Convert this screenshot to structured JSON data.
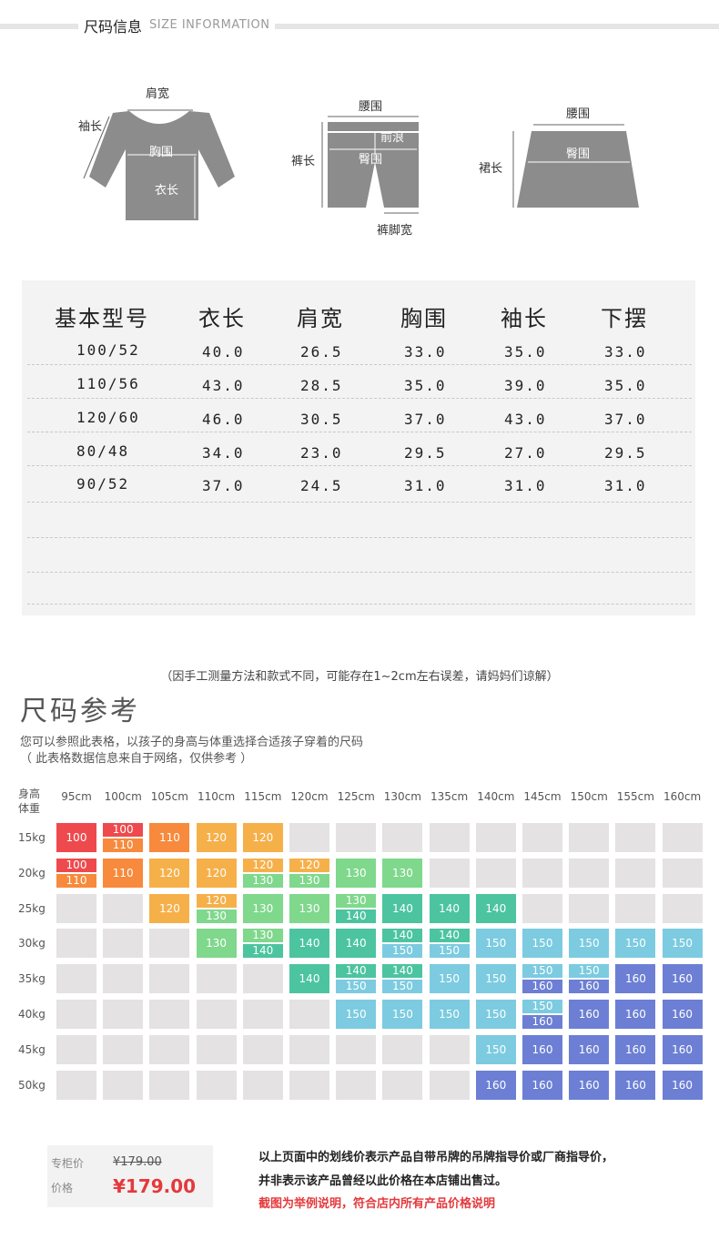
{
  "header": {
    "title": "尺码信息",
    "subtitle": "SIZE INFORMATION"
  },
  "diagrams": {
    "top": {
      "shoulder": "肩宽",
      "sleeve": "袖长",
      "chest": "胸围",
      "length": "衣长"
    },
    "pants": {
      "waist": "腰围",
      "rise": "前浪",
      "hip": "臀围",
      "length": "裤长",
      "leg": "裤脚宽"
    },
    "skirt": {
      "waist": "腰围",
      "hip": "臀围",
      "length": "裙长"
    }
  },
  "size_table": {
    "headers": [
      "基本型号",
      "衣长",
      "肩宽",
      "胸围",
      "袖长",
      "下摆"
    ],
    "rows": [
      [
        "100/52",
        "40.0",
        "26.5",
        "33.0",
        "35.0",
        "33.0"
      ],
      [
        "110/56",
        "43.0",
        "28.5",
        "35.0",
        "39.0",
        "35.0"
      ],
      [
        "120/60",
        "46.0",
        "30.5",
        "37.0",
        "43.0",
        "37.0"
      ],
      [
        "80/48",
        "34.0",
        "23.0",
        "29.5",
        "27.0",
        "29.5"
      ],
      [
        "90/52",
        "37.0",
        "24.5",
        "31.0",
        "31.0",
        "31.0"
      ]
    ]
  },
  "note": "（因手工测量方法和款式不同，可能存在1~2cm左右误差，请妈妈们谅解）",
  "reference": {
    "title": "尺码参考",
    "subtitle1": "您可以参照此表格，以孩子的身高与体重选择合适孩子穿着的尺码",
    "subtitle2": "（ 此表格数据信息来自于网络，仅供参考 ）",
    "corner_top": "身高",
    "corner_bottom": "体重",
    "heights": [
      "95cm",
      "100cm",
      "105cm",
      "110cm",
      "115cm",
      "120cm",
      "125cm",
      "130cm",
      "135cm",
      "140cm",
      "145cm",
      "150cm",
      "155cm",
      "160cm"
    ],
    "weights": [
      "15kg",
      "20kg",
      "25kg",
      "30kg",
      "35kg",
      "40kg",
      "45kg",
      "50kg"
    ],
    "grid": [
      [
        [
          "100"
        ],
        [
          "100",
          "110"
        ],
        [
          "110"
        ],
        [
          "120"
        ],
        [
          "120"
        ],
        [],
        [],
        [],
        [],
        [],
        [],
        [],
        [],
        []
      ],
      [
        [
          "100",
          "110"
        ],
        [
          "110"
        ],
        [
          "120"
        ],
        [
          "120"
        ],
        [
          "120",
          "130"
        ],
        [
          "120",
          "130"
        ],
        [
          "130"
        ],
        [
          "130"
        ],
        [],
        [],
        [],
        [],
        [],
        []
      ],
      [
        [],
        [],
        [
          "120"
        ],
        [
          "120",
          "130"
        ],
        [
          "130"
        ],
        [
          "130"
        ],
        [
          "130",
          "140"
        ],
        [
          "140"
        ],
        [
          "140"
        ],
        [
          "140"
        ],
        [],
        [],
        [],
        []
      ],
      [
        [],
        [],
        [],
        [
          "130"
        ],
        [
          "130",
          "140"
        ],
        [
          "140"
        ],
        [
          "140"
        ],
        [
          "140",
          "150"
        ],
        [
          "140",
          "150"
        ],
        [
          "150"
        ],
        [
          "150"
        ],
        [
          "150"
        ],
        [
          "150"
        ],
        [
          "150"
        ]
      ],
      [
        [],
        [],
        [],
        [],
        [],
        [
          "140"
        ],
        [
          "140",
          "150"
        ],
        [
          "140",
          "150"
        ],
        [
          "150"
        ],
        [
          "150"
        ],
        [
          "150",
          "160"
        ],
        [
          "150",
          "160"
        ],
        [
          "160"
        ],
        [
          "160"
        ]
      ],
      [
        [],
        [],
        [],
        [],
        [],
        [],
        [
          "150"
        ],
        [
          "150"
        ],
        [
          "150"
        ],
        [
          "150"
        ],
        [
          "150",
          "160"
        ],
        [
          "160"
        ],
        [
          "160"
        ],
        [
          "160"
        ]
      ],
      [
        [],
        [],
        [],
        [],
        [],
        [],
        [],
        [],
        [],
        [
          "150"
        ],
        [
          "160"
        ],
        [
          "160"
        ],
        [
          "160"
        ],
        [
          "160"
        ]
      ],
      [
        [],
        [],
        [],
        [],
        [],
        [],
        [],
        [],
        [],
        [
          "160"
        ],
        [
          "160"
        ],
        [
          "160"
        ],
        [
          "160"
        ],
        [
          "160"
        ]
      ]
    ],
    "colors": {
      "100": "#ee4a4e",
      "110": "#f78a3c",
      "120": "#f6b04a",
      "130": "#7fd88c",
      "140": "#4cc4a0",
      "150": "#7ccbe0",
      "160": "#6c7fd4",
      "empty": "#e4e2e2"
    }
  },
  "price": {
    "label1": "专柜价",
    "value1": "¥179.00",
    "label2": "价格",
    "value2": "¥179.00"
  },
  "disclaimer": {
    "line1": "以上页面中的划线价表示产品自带吊牌的吊牌指导价或厂商指导价，",
    "line2": "并非表示该产品曾经以此价格在本店铺出售过。",
    "line3": "截图为举例说明，符合店内所有产品价格说明"
  }
}
